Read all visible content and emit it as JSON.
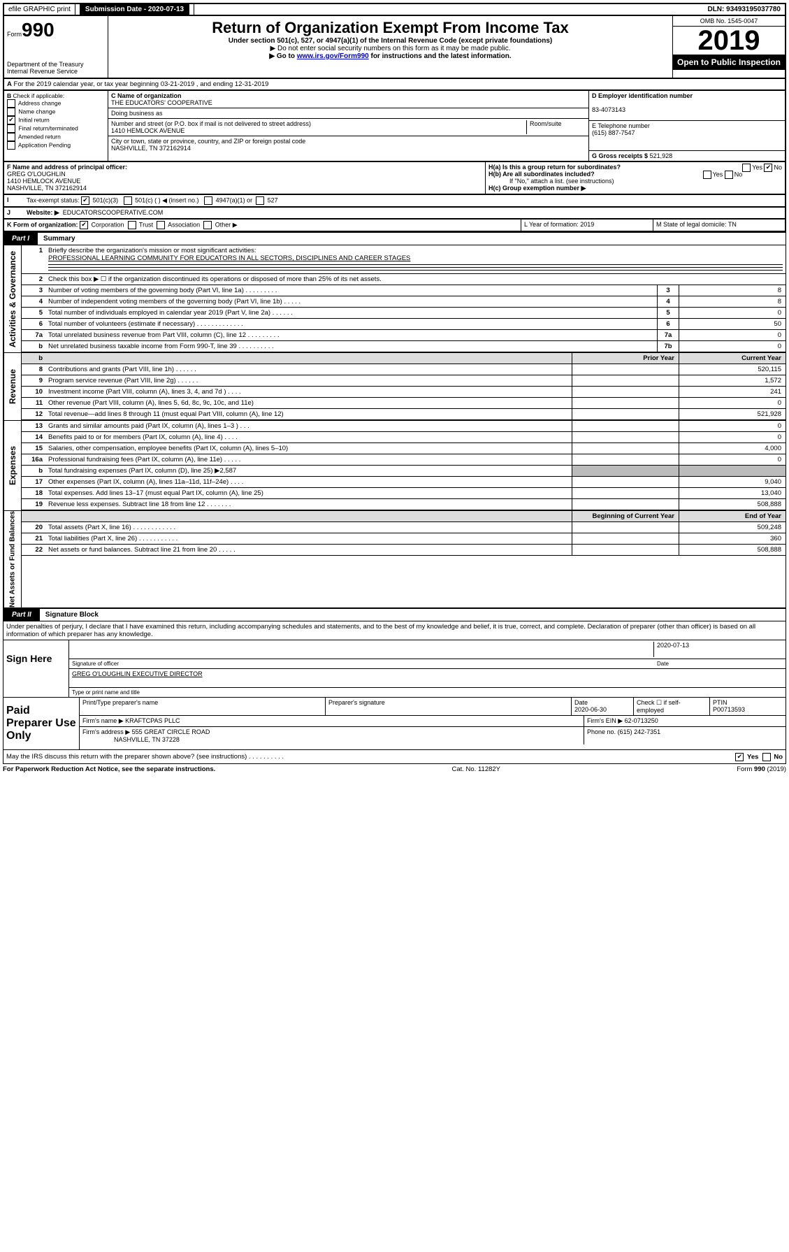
{
  "top": {
    "efile": "efile GRAPHIC print",
    "submission_label": "Submission Date - 2020-07-13",
    "dln": "DLN: 93493195037780"
  },
  "header": {
    "form_prefix": "Form",
    "form_no": "990",
    "title": "Return of Organization Exempt From Income Tax",
    "subtitle": "Under section 501(c), 527, or 4947(a)(1) of the Internal Revenue Code (except private foundations)",
    "note1": "▶ Do not enter social security numbers on this form as it may be made public.",
    "note2_pre": "▶ Go to ",
    "note2_link": "www.irs.gov/Form990",
    "note2_post": " for instructions and the latest information.",
    "dept": "Department of the Treasury\nInternal Revenue Service",
    "omb": "OMB No. 1545-0047",
    "year": "2019",
    "open": "Open to Public Inspection"
  },
  "periodA": "For the 2019 calendar year, or tax year beginning 03-21-2019    , and ending 12-31-2019",
  "boxB": {
    "label": "Check if applicable:",
    "opts": [
      "Address change",
      "Name change",
      "Initial return",
      "Final return/terminated",
      "Amended return",
      "Application Pending"
    ],
    "checked_idx": 2
  },
  "boxC": {
    "label": "C Name of organization",
    "name": "THE EDUCATORS' COOPERATIVE",
    "dba_label": "Doing business as",
    "addr_label": "Number and street (or P.O. box if mail is not delivered to street address)",
    "room_label": "Room/suite",
    "addr": "1410 HEMLOCK AVENUE",
    "city_label": "City or town, state or province, country, and ZIP or foreign postal code",
    "city": "NASHVILLE, TN  372162914"
  },
  "boxD": {
    "label": "D Employer identification number",
    "val": "83-4073143"
  },
  "boxE": {
    "label": "E Telephone number",
    "val": "(615) 887-7547"
  },
  "boxG": {
    "label": "G Gross receipts $",
    "val": "521,928"
  },
  "boxF": {
    "label": "F  Name and address of principal officer:",
    "name": "GREG O'LOUGHLIN",
    "addr1": "1410 HEMLOCK AVENUE",
    "addr2": "NASHVILLE, TN  372162914"
  },
  "boxH": {
    "a": "H(a)  Is this a group return for subordinates?",
    "b": "H(b)  Are all subordinates included?",
    "note": "If \"No,\" attach a list. (see instructions)",
    "c": "H(c)  Group exemption number ▶"
  },
  "boxI": {
    "label": "Tax-exempt status:",
    "c1": "501(c)(3)",
    "c2": "501(c) (  ) ◀ (insert no.)",
    "c3": "4947(a)(1) or",
    "c4": "527"
  },
  "boxJ": {
    "label": "Website: ▶",
    "val": "EDUCATORSCOOPERATIVE.COM"
  },
  "boxK": {
    "label": "K Form of organization:",
    "c1": "Corporation",
    "c2": "Trust",
    "c3": "Association",
    "c4": "Other ▶"
  },
  "boxL": {
    "label": "L Year of formation: 2019"
  },
  "boxM": {
    "label": "M State of legal domicile: TN"
  },
  "part1": {
    "label": "Part I",
    "title": "Summary",
    "side1": "Activities & Governance",
    "side2": "Revenue",
    "side3": "Expenses",
    "side4": "Net Assets or Fund Balances",
    "l1_label": "Briefly describe the organization's mission or most significant activities:",
    "l1_val": "PROFESSIONAL LEARNING COMMUNITY FOR EDUCATORS IN ALL SECTORS, DISCIPLINES AND CAREER STAGES",
    "l2": "Check this box ▶ ☐  if the organization discontinued its operations or disposed of more than 25% of its net assets.",
    "lines_gov": [
      {
        "n": "3",
        "d": "Number of voting members of the governing body (Part VI, line 1a)  .    .    .    .    .    .    .    .   .",
        "nc": "3",
        "v": "8"
      },
      {
        "n": "4",
        "d": "Number of independent voting members of the governing body (Part VI, line 1b)  .    .    .    .    .",
        "nc": "4",
        "v": "8"
      },
      {
        "n": "5",
        "d": "Total number of individuals employed in calendar year 2019 (Part V, line 2a)  .    .    .    .    .    .",
        "nc": "5",
        "v": "0"
      },
      {
        "n": "6",
        "d": "Total number of volunteers (estimate if necessary)  .    .    .    .    .    .    .    .    .    .    .    .    .",
        "nc": "6",
        "v": "50"
      },
      {
        "n": "7a",
        "d": "Total unrelated business revenue from Part VIII, column (C), line 12  .    .    .    .    .    .    .    .    .",
        "nc": "7a",
        "v": "0"
      },
      {
        "n": "b",
        "d": "Net unrelated business taxable income from Form 990-T, line 39  .    .    .    .    .    .    .    .    .    .",
        "nc": "7b",
        "v": "0"
      }
    ],
    "col_prior": "Prior Year",
    "col_curr": "Current Year",
    "lines_rev": [
      {
        "n": "8",
        "d": "Contributions and grants (Part VIII, line 1h)  .    .    .    .    .    .",
        "p": "",
        "c": "520,115"
      },
      {
        "n": "9",
        "d": "Program service revenue (Part VIII, line 2g)  .    .    .    .    .    .",
        "p": "",
        "c": "1,572"
      },
      {
        "n": "10",
        "d": "Investment income (Part VIII, column (A), lines 3, 4, and 7d )  .    .    .    .",
        "p": "",
        "c": "241"
      },
      {
        "n": "11",
        "d": "Other revenue (Part VIII, column (A), lines 5, 6d, 8c, 9c, 10c, and 11e)",
        "p": "",
        "c": "0"
      },
      {
        "n": "12",
        "d": "Total revenue—add lines 8 through 11 (must equal Part VIII, column (A), line 12)",
        "p": "",
        "c": "521,928"
      }
    ],
    "lines_exp": [
      {
        "n": "13",
        "d": "Grants and similar amounts paid (Part IX, column (A), lines 1–3 )  .    .    .",
        "p": "",
        "c": "0"
      },
      {
        "n": "14",
        "d": "Benefits paid to or for members (Part IX, column (A), line 4)  .    .    .    .",
        "p": "",
        "c": "0"
      },
      {
        "n": "15",
        "d": "Salaries, other compensation, employee benefits (Part IX, column (A), lines 5–10)",
        "p": "",
        "c": "4,000"
      },
      {
        "n": "16a",
        "d": "Professional fundraising fees (Part IX, column (A), line 11e)  .    .    .    .    .",
        "p": "",
        "c": "0"
      },
      {
        "n": "b",
        "d": "Total fundraising expenses (Part IX, column (D), line 25) ▶2,587",
        "p": "shade",
        "c": "shade"
      },
      {
        "n": "17",
        "d": "Other expenses (Part IX, column (A), lines 11a–11d, 11f–24e)  .    .    .    .",
        "p": "",
        "c": "9,040"
      },
      {
        "n": "18",
        "d": "Total expenses. Add lines 13–17 (must equal Part IX, column (A), line 25)",
        "p": "",
        "c": "13,040"
      },
      {
        "n": "19",
        "d": "Revenue less expenses. Subtract line 18 from line 12  .    .    .    .    .    .    .",
        "p": "",
        "c": "508,888"
      }
    ],
    "col_beg": "Beginning of Current Year",
    "col_end": "End of Year",
    "lines_net": [
      {
        "n": "20",
        "d": "Total assets (Part X, line 16)  .    .    .    .    .    .    .    .    .    .    .    .",
        "p": "",
        "c": "509,248"
      },
      {
        "n": "21",
        "d": "Total liabilities (Part X, line 26)  .    .    .    .    .    .    .    .    .    .    .",
        "p": "",
        "c": "360"
      },
      {
        "n": "22",
        "d": "Net assets or fund balances. Subtract line 21 from line 20  .    .    .    .    .",
        "p": "",
        "c": "508,888"
      }
    ]
  },
  "part2": {
    "label": "Part II",
    "title": "Signature Block",
    "decl": "Under penalties of perjury, I declare that I have examined this return, including accompanying schedules and statements, and to the best of my knowledge and belief, it is true, correct, and complete. Declaration of preparer (other than officer) is based on all information of which preparer has any knowledge."
  },
  "sign": {
    "side": "Sign Here",
    "sig_date": "2020-07-13",
    "sig_label": "Signature of officer",
    "date_label": "Date",
    "name": "GREG O'LOUGHLIN  EXECUTIVE DIRECTOR",
    "name_label": "Type or print name and title"
  },
  "prep": {
    "side": "Paid Preparer Use Only",
    "h1": "Print/Type preparer's name",
    "h2": "Preparer's signature",
    "h3": "Date",
    "h4": "Check ☐ if self-employed",
    "h5": "PTIN",
    "date": "2020-06-30",
    "ptin": "P00713593",
    "firm_label": "Firm's name   ▶",
    "firm": "KRAFTCPAS PLLC",
    "ein_label": "Firm's EIN ▶",
    "ein": "62-0713250",
    "addr_label": "Firm's address ▶",
    "addr1": "555 GREAT CIRCLE ROAD",
    "addr2": "NASHVILLE, TN  37228",
    "phone_label": "Phone no.",
    "phone": "(615) 242-7351"
  },
  "discuss": "May the IRS discuss this return with the preparer shown above? (see instructions)   .    .    .    .    .    .    .    .    .    .",
  "footer": {
    "l": "For Paperwork Reduction Act Notice, see the separate instructions.",
    "m": "Cat. No. 11282Y",
    "r": "Form 990 (2019)"
  },
  "yes": "Yes",
  "no": "No"
}
